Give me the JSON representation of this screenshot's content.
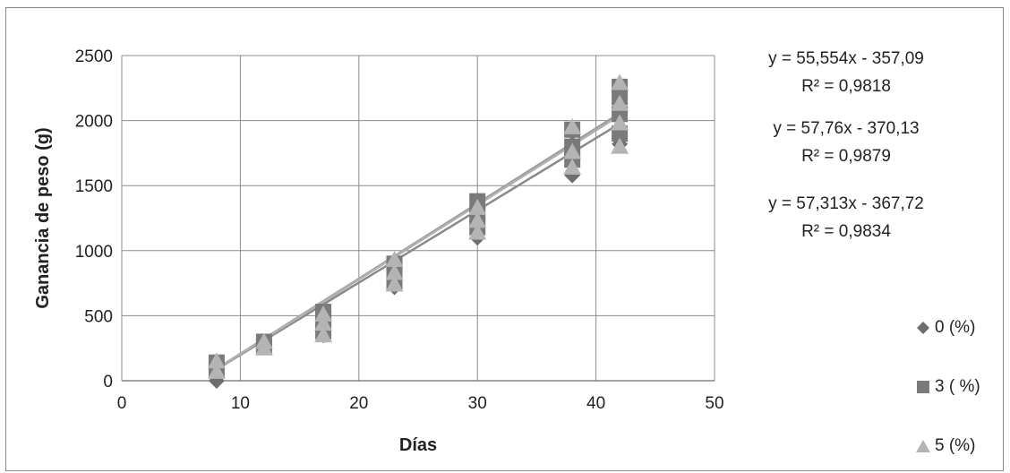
{
  "chart_data": {
    "type": "scatter",
    "title": "",
    "xlabel": "Días",
    "ylabel": "Ganancia de peso (g)",
    "xlim": [
      0,
      50
    ],
    "ylim": [
      0,
      2500
    ],
    "xticks": [
      "0",
      "10",
      "20",
      "30",
      "40",
      "50"
    ],
    "yticks": [
      "0",
      "500",
      "1000",
      "1500",
      "2000",
      "2500"
    ],
    "grid": true,
    "legend_position": "right",
    "series": [
      {
        "name": "0 (%)",
        "marker": "diamond",
        "color": "#6e6e6e",
        "points": [
          [
            8,
            0
          ],
          [
            8,
            110
          ],
          [
            12,
            260
          ],
          [
            12,
            300
          ],
          [
            17,
            350
          ],
          [
            17,
            430
          ],
          [
            17,
            520
          ],
          [
            23,
            720
          ],
          [
            23,
            800
          ],
          [
            23,
            880
          ],
          [
            30,
            1100
          ],
          [
            30,
            1200
          ],
          [
            30,
            1300
          ],
          [
            38,
            1580
          ],
          [
            38,
            1700
          ],
          [
            38,
            1820
          ],
          [
            42,
            1820
          ],
          [
            42,
            1950
          ],
          [
            42,
            2080
          ],
          [
            42,
            2200
          ]
        ],
        "trendline": {
          "slope": 55.554,
          "intercept": -357.09,
          "r2": 0.9818
        }
      },
      {
        "name": "3 ( %)",
        "marker": "square",
        "color": "#7a7a7a",
        "points": [
          [
            8,
            80
          ],
          [
            8,
            140
          ],
          [
            12,
            260
          ],
          [
            12,
            300
          ],
          [
            17,
            380
          ],
          [
            17,
            470
          ],
          [
            17,
            530
          ],
          [
            23,
            760
          ],
          [
            23,
            850
          ],
          [
            23,
            900
          ],
          [
            30,
            1180
          ],
          [
            30,
            1280
          ],
          [
            30,
            1380
          ],
          [
            38,
            1700
          ],
          [
            38,
            1800
          ],
          [
            38,
            1930
          ],
          [
            42,
            1900
          ],
          [
            42,
            2050
          ],
          [
            42,
            2180
          ],
          [
            42,
            2260
          ]
        ],
        "trendline": {
          "slope": 57.76,
          "intercept": -370.13,
          "r2": 0.9879
        }
      },
      {
        "name": "5 (%)",
        "marker": "triangle",
        "color": "#b4b4b4",
        "points": [
          [
            8,
            70
          ],
          [
            8,
            150
          ],
          [
            12,
            250
          ],
          [
            12,
            300
          ],
          [
            17,
            350
          ],
          [
            17,
            440
          ],
          [
            17,
            510
          ],
          [
            23,
            740
          ],
          [
            23,
            830
          ],
          [
            23,
            930
          ],
          [
            30,
            1140
          ],
          [
            30,
            1230
          ],
          [
            30,
            1330
          ],
          [
            38,
            1640
          ],
          [
            38,
            1760
          ],
          [
            38,
            1950
          ],
          [
            42,
            1800
          ],
          [
            42,
            1980
          ],
          [
            42,
            2130
          ],
          [
            42,
            2290
          ]
        ],
        "trendline": {
          "slope": 57.313,
          "intercept": -367.72,
          "r2": 0.9834
        }
      }
    ],
    "annotations": [
      {
        "equation": "y = 55,554x - 357,09",
        "r2": "R² = 0,9818"
      },
      {
        "equation": "y = 57,76x - 370,13",
        "r2": "R² = 0,9879"
      },
      {
        "equation": "y = 57,313x - 367,72",
        "r2": "R² = 0,9834"
      }
    ]
  }
}
